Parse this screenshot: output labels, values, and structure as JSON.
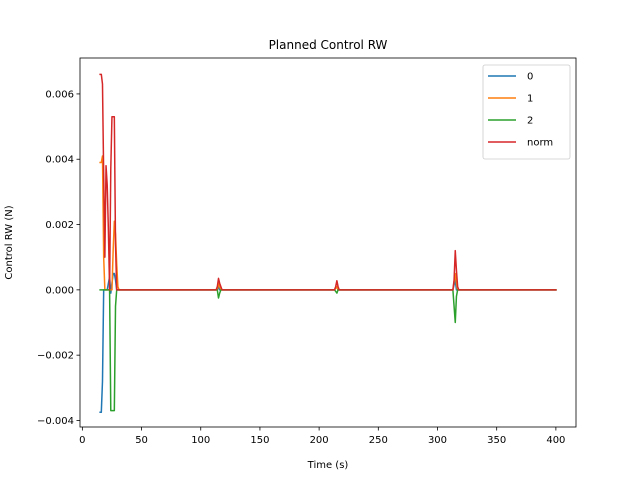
{
  "chart_data": {
    "type": "line",
    "title": "Planned Control RW",
    "xlabel": "Time (s)",
    "ylabel": "Control RW (N)",
    "xlim": [
      -2,
      417
    ],
    "ylim": [
      -0.0042,
      0.0071
    ],
    "xticks": [
      0,
      50,
      100,
      150,
      200,
      250,
      300,
      350,
      400
    ],
    "yticks": [
      -0.004,
      -0.002,
      0.0,
      0.002,
      0.004,
      0.006
    ],
    "xtick_labels": [
      "0",
      "50",
      "100",
      "150",
      "200",
      "250",
      "300",
      "350",
      "400"
    ],
    "ytick_labels": [
      "−0.004",
      "−0.002",
      "0.000",
      "0.002",
      "0.004",
      "0.006"
    ],
    "grid": false,
    "legend_position": "top-right",
    "series": [
      {
        "name": "0",
        "color": "#1f77b4",
        "x": [
          15,
          16,
          17,
          18,
          19,
          20,
          21,
          22,
          23,
          24,
          25,
          26,
          27,
          28,
          29,
          30,
          31,
          32,
          33,
          50,
          114,
          115,
          116,
          117,
          213,
          215,
          216,
          217,
          313,
          315,
          316,
          317,
          400
        ],
        "y": [
          -0.00375,
          -0.00375,
          -0.0028,
          0.0,
          0.0,
          0.0,
          0.0,
          0.0002,
          0.0004,
          -0.0001,
          0.0002,
          0.0005,
          0.0005,
          0.0003,
          0.0,
          0.0,
          0.0,
          0.0,
          0.0,
          0.0,
          0.0,
          0.0001,
          0.0,
          0.0,
          0.0,
          0.0001,
          0.0,
          0.0,
          0.0,
          0.0003,
          0.0,
          0.0,
          0.0
        ]
      },
      {
        "name": "1",
        "color": "#ff7f0e",
        "x": [
          15,
          16,
          17,
          18,
          19,
          20,
          21,
          22,
          23,
          24,
          25,
          26,
          27,
          28,
          29,
          30,
          31,
          32,
          50,
          114,
          115,
          116,
          117,
          213,
          215,
          216,
          217,
          313,
          315,
          316,
          317,
          400
        ],
        "y": [
          0.0039,
          0.0039,
          0.0041,
          0.001,
          0.0,
          0.0,
          0.0,
          0.0,
          0.0,
          0.0,
          0.0,
          0.0012,
          0.0021,
          0.0017,
          0.0008,
          0.0001,
          0.0,
          0.0,
          0.0,
          0.0,
          0.0002,
          0.0001,
          0.0,
          0.0,
          0.0001,
          0.0,
          0.0,
          0.0,
          0.0005,
          0.0002,
          0.0,
          0.0
        ]
      },
      {
        "name": "2",
        "color": "#2ca02c",
        "x": [
          15,
          16,
          17,
          18,
          19,
          20,
          21,
          22,
          23,
          24,
          25,
          26,
          27,
          28,
          29,
          30,
          31,
          32,
          50,
          114,
          115,
          116,
          117,
          213,
          215,
          216,
          217,
          313,
          314,
          315,
          316,
          317,
          400
        ],
        "y": [
          0.0,
          0.0,
          0.0,
          0.0,
          0.0,
          0.0,
          0.0,
          0.0,
          0.0,
          -0.0037,
          -0.0037,
          -0.0037,
          -0.0037,
          -0.0005,
          0.0,
          0.0,
          0.0,
          0.0,
          0.0,
          0.0,
          -0.00025,
          -0.0001,
          0.0,
          0.0,
          -0.0001,
          0.0,
          0.0,
          0.0,
          -0.0005,
          -0.001,
          -0.0002,
          0.0,
          0.0
        ]
      },
      {
        "name": "norm",
        "color": "#d62728",
        "x": [
          15,
          16,
          17,
          18,
          19,
          20,
          21,
          22,
          23,
          24,
          25,
          26,
          27,
          28,
          29,
          30,
          31,
          32,
          33,
          50,
          113,
          114,
          115,
          116,
          117,
          118,
          213,
          214,
          215,
          216,
          217,
          313,
          314,
          315,
          316,
          317,
          318,
          400
        ],
        "y": [
          0.0066,
          0.0066,
          0.0063,
          0.0035,
          0.001,
          0.0038,
          0.0032,
          0.0018,
          0.0,
          0.0037,
          0.0053,
          0.0053,
          0.0053,
          0.0014,
          0.0,
          0.0,
          0.0,
          0.0,
          0.0,
          0.0,
          0.0,
          0.0001,
          0.00035,
          0.0002,
          0.0001,
          0.0,
          0.0,
          0.0001,
          0.00028,
          0.0001,
          0.0,
          0.0,
          0.0003,
          0.0012,
          0.0006,
          0.0001,
          0.0,
          0.0
        ]
      }
    ]
  }
}
